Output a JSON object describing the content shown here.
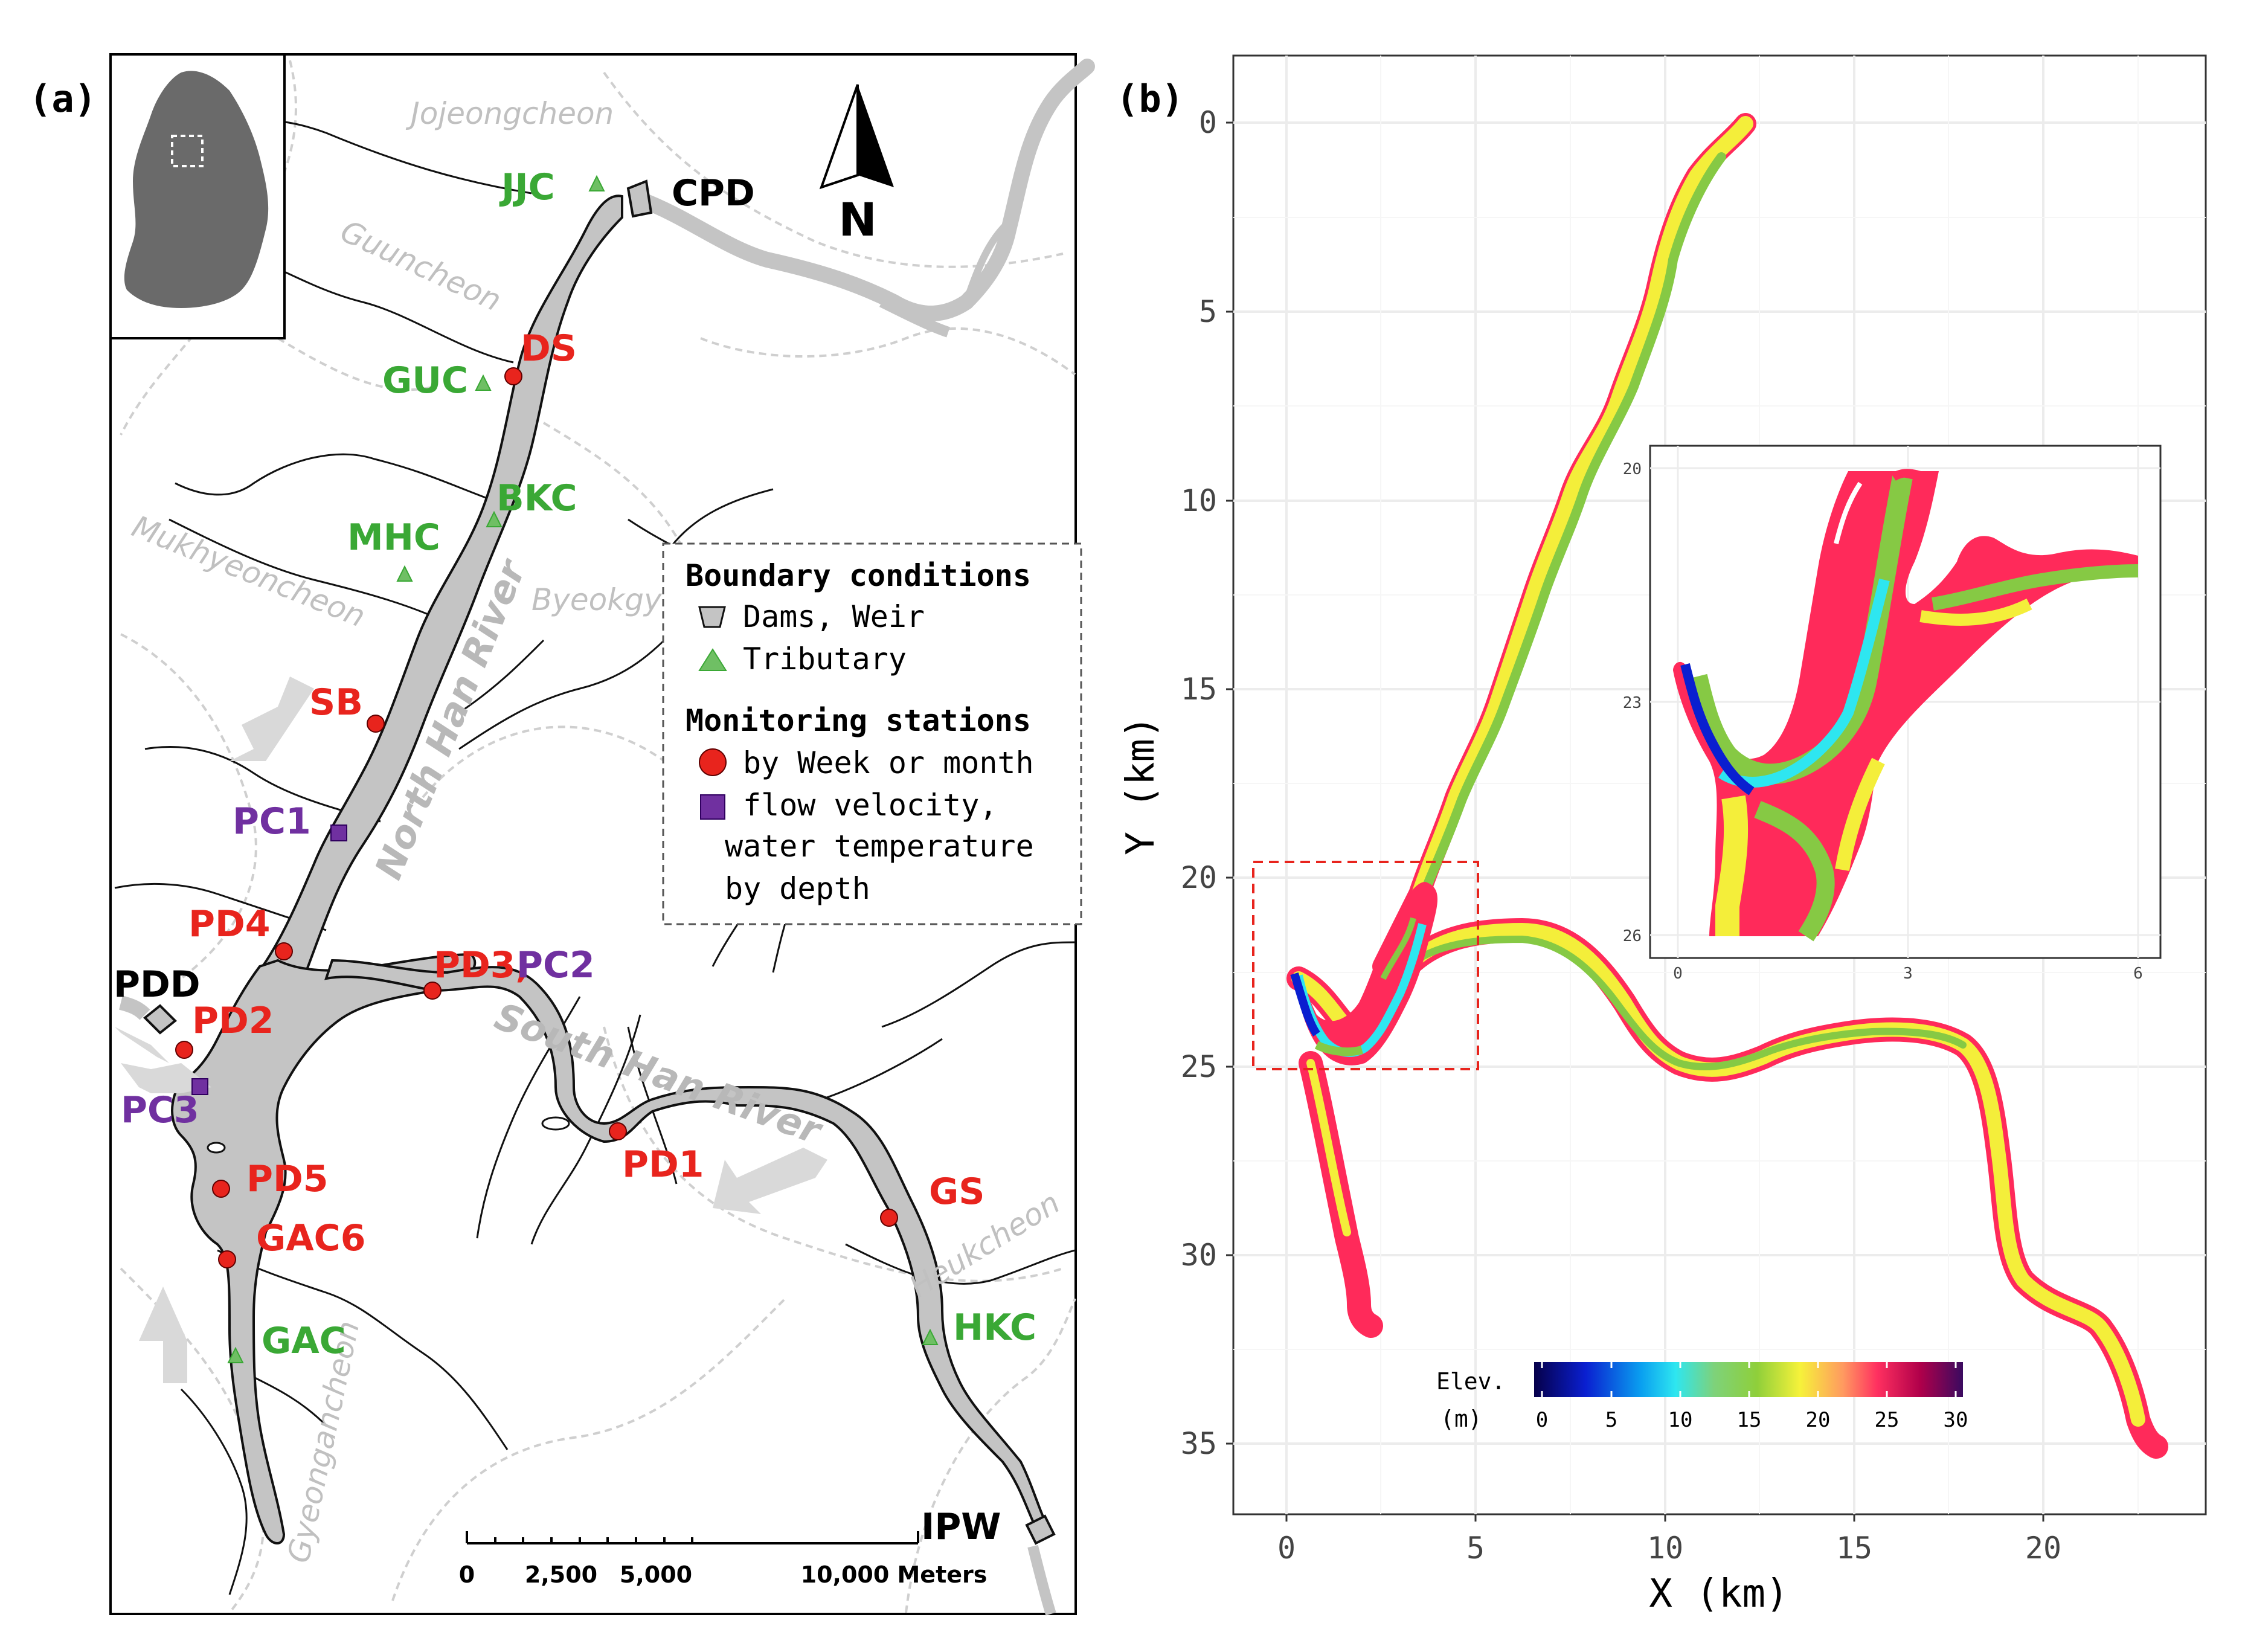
{
  "panel_a": {
    "label": "(a)",
    "north_label": "N",
    "rivers": {
      "north_han": "North Han River",
      "south_han": "South Han River"
    },
    "tributary_names": {
      "jojeongcheon": "Jojeongcheon",
      "guuncheon": "Guuncheon",
      "mukhyeoncheon": "Mukhyeoncheon",
      "byeokgye": "Byeokgye",
      "heukcheon": "Heukcheon",
      "gyeongancheon": "Gyeongancheon"
    },
    "boundary_stations": {
      "cpd": "CPD",
      "pdd": "PDD",
      "ipw": "IPW",
      "jjc": "JJC",
      "guc": "GUC",
      "bkc": "BKC",
      "mhc": "MHC",
      "gac": "GAC",
      "hkc": "HKC"
    },
    "monitoring_stations": {
      "ds": "DS",
      "sb": "SB",
      "pd4": "PD4",
      "pd2": "PD2",
      "pd5": "PD5",
      "gac6": "GAC6",
      "pd1": "PD1",
      "gs": "GS",
      "pd3": "PD3,",
      "pc2": "PC2",
      "pc1": "PC1",
      "pc3": "PC3"
    },
    "legend": {
      "title_boundary": "Boundary conditions",
      "dams": "Dams, Weir",
      "tributary": "Tributary",
      "title_monitoring": "Monitoring stations",
      "weekly": "by Week or month",
      "flow_line1": "flow velocity,",
      "flow_line2": "water temperature",
      "flow_line3": "by depth"
    },
    "scale_bar": {
      "ticks": [
        "0",
        "2,500",
        "5,000",
        "10,000 Meters"
      ]
    }
  },
  "panel_b": {
    "label": "(b)",
    "x_axis_title": "X (km)",
    "y_axis_title": "Y (km)",
    "x_ticks": [
      "0",
      "5",
      "10",
      "15",
      "20"
    ],
    "y_ticks": [
      "0",
      "5",
      "10",
      "15",
      "20",
      "25",
      "30",
      "35"
    ],
    "inset": {
      "y_ticks": [
        "20",
        "23",
        "26"
      ],
      "x_ticks": [
        "0",
        "3",
        "6"
      ]
    },
    "colorbar": {
      "title_line1": "Elev.",
      "title_line2": "(m)",
      "ticks": [
        "0",
        "5",
        "10",
        "15",
        "20",
        "25",
        "30"
      ]
    }
  },
  "colors": {
    "station_red": "#e8241d",
    "tributary_green": "#3aa835",
    "velocity_purple": "#7030a0",
    "river_gray": "#c4c4c4"
  }
}
